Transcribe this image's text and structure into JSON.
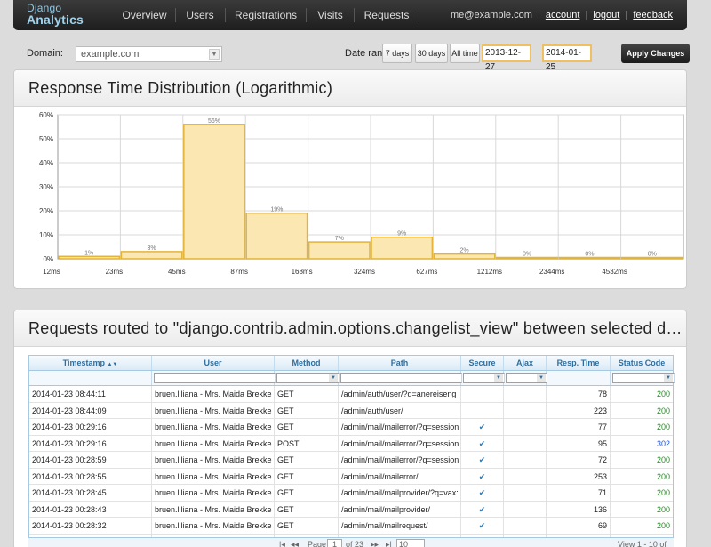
{
  "app": {
    "logo_line1": "Django",
    "logo_line2": "Analytics"
  },
  "nav": [
    {
      "label": "Overview"
    },
    {
      "label": "Users"
    },
    {
      "label": "Registrations"
    },
    {
      "label": "Visits"
    },
    {
      "label": "Requests"
    }
  ],
  "user": {
    "email": "me@example.com",
    "sep": "|",
    "account": "account",
    "logout": "logout",
    "feedback": "feedback"
  },
  "controls": {
    "domain_label": "Domain:",
    "domain_value": "example.com",
    "range_label": "Date range:",
    "btn_7": "7 days",
    "btn_30": "30 days",
    "btn_all": "All time",
    "date_from": "2013-12-27",
    "dash": "—",
    "date_to": "2014-01-25",
    "apply": "Apply Changes"
  },
  "chart": {
    "title": "Response Time Distribution (Logarithmic)"
  },
  "chart_data": {
    "type": "bar",
    "title": "Response Time Distribution (Logarithmic)",
    "xticks": [
      "12ms",
      "23ms",
      "45ms",
      "87ms",
      "168ms",
      "324ms",
      "627ms",
      "1212ms",
      "2344ms",
      "4532ms"
    ],
    "yticks": [
      "0%",
      "10%",
      "20%",
      "30%",
      "40%",
      "50%",
      "60%"
    ],
    "ylim": [
      0,
      60
    ],
    "values": [
      1,
      3,
      56,
      19,
      7,
      9,
      2,
      0,
      0,
      0
    ],
    "labels": [
      "1%",
      "3%",
      "56%",
      "19%",
      "7%",
      "9%",
      "2%",
      "0%",
      "0%",
      "0%"
    ],
    "grid": true,
    "colors": {
      "bar_fill": "#fbe7b2",
      "bar_stroke": "#e3b33a"
    }
  },
  "requests": {
    "title": "Requests routed to \"django.contrib.admin.options.changelist_view\" between selected da...",
    "columns": [
      "Timestamp",
      "User",
      "Method",
      "Path",
      "Secure",
      "Ajax",
      "Resp. Time",
      "Status Code"
    ],
    "sort_icon": "▲▼",
    "rows": [
      {
        "ts": "2014-01-23 08:44:11",
        "user": "bruen.liliana - Mrs. Maida Brekke <l",
        "method": "GET",
        "path": "/admin/auth/user/?q=anereiseng",
        "secure": "",
        "ajax": "",
        "time": "78",
        "status": "200"
      },
      {
        "ts": "2014-01-23 08:44:09",
        "user": "bruen.liliana - Mrs. Maida Brekke <l",
        "method": "GET",
        "path": "/admin/auth/user/",
        "secure": "",
        "ajax": "",
        "time": "223",
        "status": "200"
      },
      {
        "ts": "2014-01-23 00:29:16",
        "user": "bruen.liliana - Mrs. Maida Brekke <l",
        "method": "GET",
        "path": "/admin/mail/mailerror/?q=session",
        "secure": "✔",
        "ajax": "",
        "time": "77",
        "status": "200"
      },
      {
        "ts": "2014-01-23 00:29:16",
        "user": "bruen.liliana - Mrs. Maida Brekke <l",
        "method": "POST",
        "path": "/admin/mail/mailerror/?q=session",
        "secure": "✔",
        "ajax": "",
        "time": "95",
        "status": "302"
      },
      {
        "ts": "2014-01-23 00:28:59",
        "user": "bruen.liliana - Mrs. Maida Brekke <l",
        "method": "GET",
        "path": "/admin/mail/mailerror/?q=session",
        "secure": "✔",
        "ajax": "",
        "time": "72",
        "status": "200"
      },
      {
        "ts": "2014-01-23 00:28:55",
        "user": "bruen.liliana - Mrs. Maida Brekke <l",
        "method": "GET",
        "path": "/admin/mail/mailerror/",
        "secure": "✔",
        "ajax": "",
        "time": "253",
        "status": "200"
      },
      {
        "ts": "2014-01-23 00:28:45",
        "user": "bruen.liliana - Mrs. Maida Brekke <l",
        "method": "GET",
        "path": "/admin/mail/mailprovider/?q=vax:",
        "secure": "✔",
        "ajax": "",
        "time": "71",
        "status": "200"
      },
      {
        "ts": "2014-01-23 00:28:43",
        "user": "bruen.liliana - Mrs. Maida Brekke <l",
        "method": "GET",
        "path": "/admin/mail/mailprovider/",
        "secure": "✔",
        "ajax": "",
        "time": "136",
        "status": "200"
      },
      {
        "ts": "2014-01-23 00:28:32",
        "user": "bruen.liliana - Mrs. Maida Brekke <l",
        "method": "GET",
        "path": "/admin/mail/mailrequest/",
        "secure": "✔",
        "ajax": "",
        "time": "69",
        "status": "200"
      },
      {
        "ts": "2014-01-23 00:28:30",
        "user": "bruen.liliana - Mrs. Maida Brekke <l",
        "method": "GET",
        "path": "/admin/mail/mailrequest/",
        "secure": "✔",
        "ajax": "",
        "time": "73",
        "status": "200"
      }
    ]
  },
  "pager": {
    "first": "|◂",
    "prev": "◂◂",
    "page_label": "Page",
    "page": "1",
    "of": "of 23",
    "next": "▸▸",
    "last": "▸|",
    "size": "10",
    "view": "View 1 - 10 of 230"
  }
}
